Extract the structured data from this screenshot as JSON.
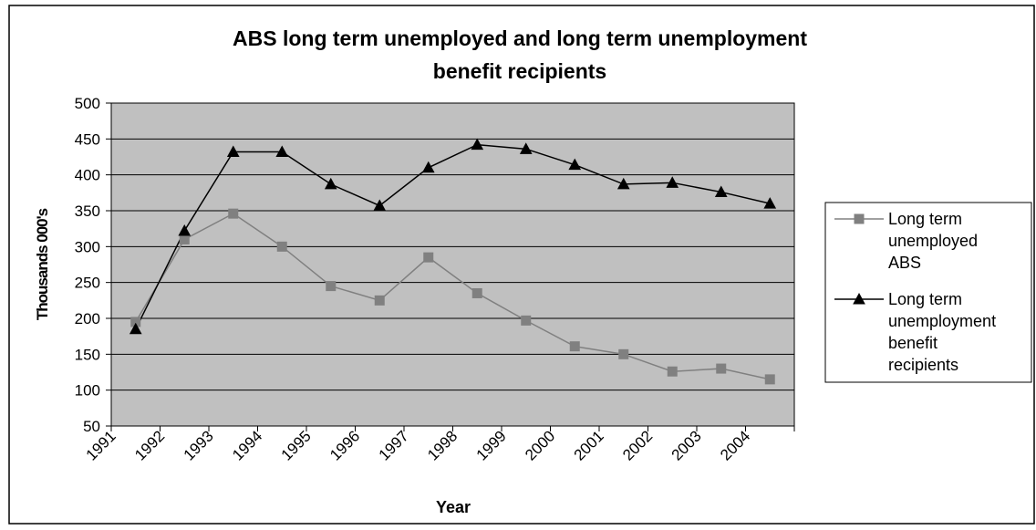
{
  "chart_data": {
    "type": "line",
    "title_line1": "ABS long term unemployed and long term unemployment",
    "title_line2": "benefit recipients",
    "xlabel": "Year",
    "ylabel": "Thousands 000's",
    "x": [
      "1991",
      "1992",
      "1993",
      "1994",
      "1995",
      "1996",
      "1997",
      "1998",
      "1999",
      "2000",
      "2001",
      "2002",
      "2003",
      "2004"
    ],
    "ylim": [
      50,
      500
    ],
    "yticks": [
      50,
      100,
      150,
      200,
      250,
      300,
      350,
      400,
      450,
      500
    ],
    "grid": true,
    "legend_position": "right",
    "plot_background": "#c0c0c0",
    "series": [
      {
        "name": "Long term unemployed ABS",
        "legend_lines": [
          "Long term",
          "unemployed",
          "ABS"
        ],
        "marker": "square",
        "color": "#808080",
        "values": [
          195,
          310,
          346,
          300,
          245,
          225,
          285,
          235,
          197,
          161,
          150,
          126,
          130,
          115
        ]
      },
      {
        "name": "Long term unemployment benefit recipients",
        "legend_lines": [
          "Long term",
          "unemployment",
          "benefit",
          "recipients"
        ],
        "marker": "triangle",
        "color": "#000000",
        "values": [
          185,
          322,
          432,
          432,
          387,
          357,
          410,
          442,
          436,
          414,
          387,
          389,
          376,
          360
        ]
      }
    ]
  }
}
